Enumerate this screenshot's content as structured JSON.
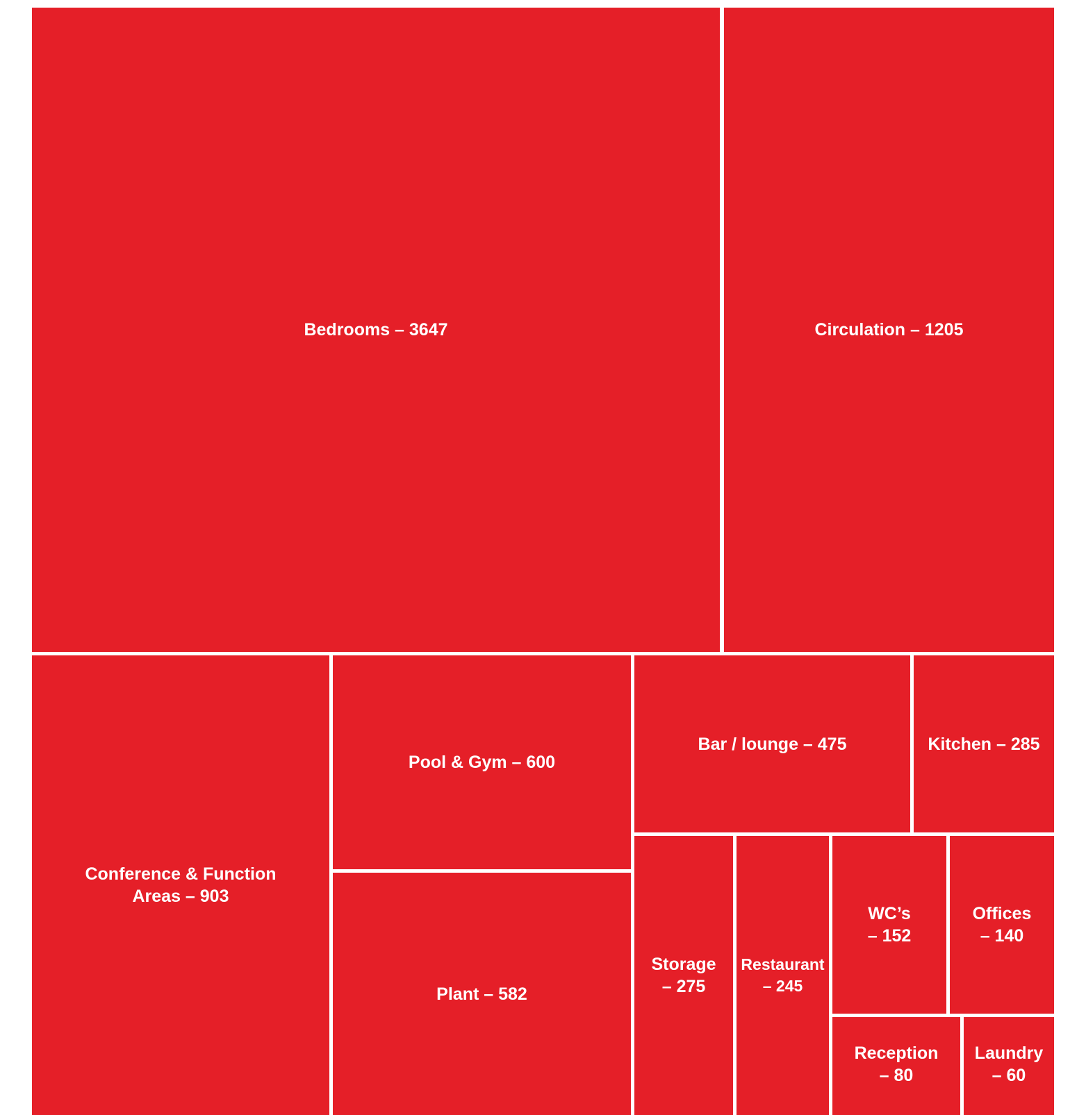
{
  "chart_data": {
    "type": "treemap",
    "color": "#e51f28",
    "background": "#ffffff",
    "items": [
      {
        "id": "bedrooms",
        "name": "Bedrooms",
        "value": 3647,
        "label_lines": [
          "Bedrooms – 3647"
        ]
      },
      {
        "id": "circulation",
        "name": "Circulation",
        "value": 1205,
        "label_lines": [
          "Circulation – 1205"
        ]
      },
      {
        "id": "conference",
        "name": "Conference & Function Areas",
        "value": 903,
        "label_lines": [
          "Conference & Function",
          "Areas – 903"
        ]
      },
      {
        "id": "pool-gym",
        "name": "Pool & Gym",
        "value": 600,
        "label_lines": [
          "Pool & Gym – 600"
        ]
      },
      {
        "id": "plant",
        "name": "Plant",
        "value": 582,
        "label_lines": [
          "Plant – 582"
        ]
      },
      {
        "id": "bar-lounge",
        "name": "Bar / lounge",
        "value": 475,
        "label_lines": [
          "Bar / lounge – 475"
        ]
      },
      {
        "id": "kitchen",
        "name": "Kitchen",
        "value": 285,
        "label_lines": [
          "Kitchen – 285"
        ]
      },
      {
        "id": "storage",
        "name": "Storage",
        "value": 275,
        "label_lines": [
          "Storage",
          "– 275"
        ]
      },
      {
        "id": "restaurant",
        "name": "Restaurant",
        "value": 245,
        "label_lines": [
          "Restaurant",
          "– 245"
        ]
      },
      {
        "id": "wcs",
        "name": "WC’s",
        "value": 152,
        "label_lines": [
          "WC’s",
          "– 152"
        ]
      },
      {
        "id": "offices",
        "name": "Offices",
        "value": 140,
        "label_lines": [
          "Offices",
          "– 140"
        ]
      },
      {
        "id": "reception",
        "name": "Reception",
        "value": 80,
        "label_lines": [
          "Reception",
          "– 80"
        ]
      },
      {
        "id": "laundry",
        "name": "Laundry",
        "value": 60,
        "label_lines": [
          "Laundry",
          "– 60"
        ]
      }
    ]
  }
}
